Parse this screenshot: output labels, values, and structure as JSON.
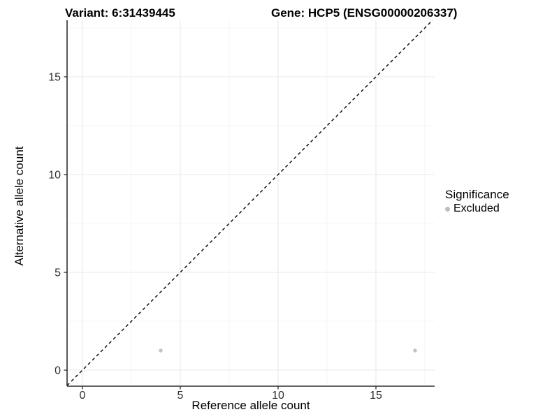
{
  "titles": {
    "variant": "Variant: 6:31439445",
    "gene": "Gene: HCP5 (ENSG00000206337)"
  },
  "legend": {
    "title": "Significance",
    "items": [
      {
        "label": "Excluded",
        "color": "#bebebe"
      }
    ]
  },
  "chart_data": {
    "type": "scatter",
    "title": "Variant: 6:31439445 | Gene: HCP5 (ENSG00000206337)",
    "xlabel": "Reference allele count",
    "ylabel": "Alternative allele count",
    "xlim": [
      -0.8,
      18.0
    ],
    "ylim": [
      -0.85,
      17.9
    ],
    "x_ticks": [
      0,
      5,
      10,
      15
    ],
    "y_ticks": [
      0,
      5,
      10,
      15
    ],
    "grid": "major and minor light-gray gridlines, white panel",
    "legend_position": "right-center",
    "series": [
      {
        "name": "Excluded",
        "color": "#bebebe",
        "points": [
          {
            "x": 4,
            "y": 1
          },
          {
            "x": 17,
            "y": 1
          }
        ]
      }
    ],
    "reference_line": {
      "kind": "identity y=x",
      "style": "dashed",
      "color": "#000000"
    }
  },
  "colors": {
    "grid_major": "#e9e9e9",
    "grid_minor": "#f4f4f4",
    "axis_line": "#2e2e2e",
    "tick_label": "#2e2e2e",
    "point": "#c2c2c2",
    "dashed_line": "#000000"
  }
}
